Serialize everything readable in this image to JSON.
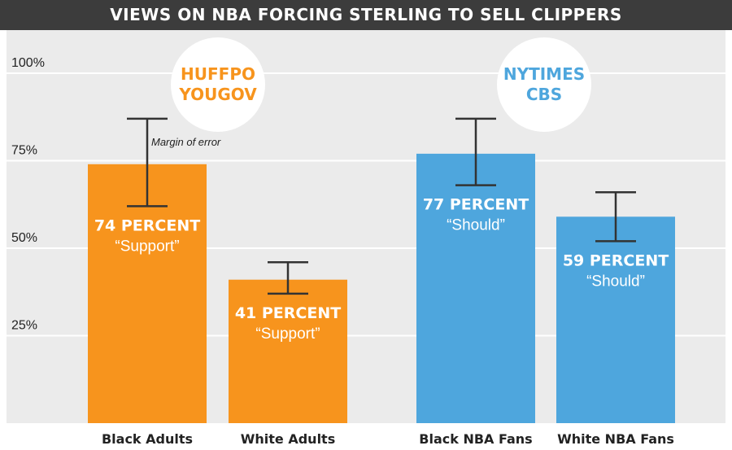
{
  "chart_data": {
    "type": "bar",
    "title": "VIEWS ON NBA FORCING STERLING TO SELL CLIPPERS",
    "ylim": [
      0,
      100
    ],
    "yticks": [
      {
        "value": 100,
        "label": "100%"
      },
      {
        "value": 75,
        "label": "75%"
      },
      {
        "value": 50,
        "label": "50%"
      },
      {
        "value": 25,
        "label": "25%"
      }
    ],
    "grid": true,
    "colors": {
      "huffpo": "#f7941d",
      "nytimes": "#4ea6dd",
      "title_bg": "#3c3c3c",
      "plot_bg": "#ebebeb",
      "grid": "#ffffff",
      "error_bar": "#333333"
    },
    "categories": [
      "Black Adults",
      "White Adults",
      "Black NBA Fans",
      "White NBA Fans"
    ],
    "bars": [
      {
        "category": "Black Adults",
        "value": 74,
        "err_low": 62,
        "err_high": 87,
        "label": "74 PERCENT",
        "sublabel": "“Support”",
        "color": "#f7941d"
      },
      {
        "category": "White Adults",
        "value": 41,
        "err_low": 37,
        "err_high": 46,
        "label": "41 PERCENT",
        "sublabel": "“Support”",
        "color": "#f7941d"
      },
      {
        "category": "Black NBA Fans",
        "value": 77,
        "err_low": 68,
        "err_high": 87,
        "label": "77 PERCENT",
        "sublabel": "“Should”",
        "color": "#4ea6dd"
      },
      {
        "category": "White NBA Fans",
        "value": 59,
        "err_low": 52,
        "err_high": 66,
        "label": "59 PERCENT",
        "sublabel": "“Should”",
        "color": "#4ea6dd"
      }
    ],
    "sources": [
      {
        "lines": [
          "HUFFPO",
          "YOUGOV"
        ],
        "color": "#f7941d"
      },
      {
        "lines": [
          "NYTIMES",
          "CBS"
        ],
        "color": "#4ea6dd"
      }
    ],
    "annotation": "Margin of error"
  }
}
